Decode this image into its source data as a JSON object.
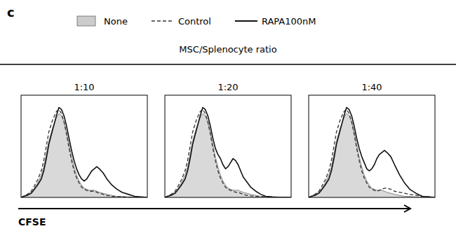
{
  "title": "c",
  "subtitle": "MSC/Splenocyte ratio",
  "xlabel": "CFSE",
  "chart_data": [
    {
      "type": "line",
      "title": "1:10",
      "legend": "top",
      "grid": false,
      "tick_labels": false,
      "xlim": [
        0,
        1.0
      ],
      "ylim": [
        0,
        1.0
      ],
      "xticks": [],
      "yticks": [],
      "x": [
        0,
        0.02,
        0.05,
        0.08,
        0.1,
        0.13,
        0.16,
        0.18,
        0.2,
        0.22,
        0.25,
        0.28,
        0.3,
        0.32,
        0.34,
        0.36,
        0.38,
        0.4,
        0.42,
        0.44,
        0.46,
        0.48,
        0.5,
        0.52,
        0.54,
        0.56,
        0.58,
        0.6,
        0.62,
        0.65,
        0.68,
        0.72,
        0.76,
        0.8,
        0.85,
        0.9,
        0.95,
        1.0
      ],
      "series": [
        {
          "name": "None",
          "type": "area",
          "color": "#cccccc",
          "line_style": "solid",
          "values": [
            0,
            0.01,
            0.03,
            0.05,
            0.08,
            0.14,
            0.22,
            0.3,
            0.42,
            0.55,
            0.68,
            0.78,
            0.82,
            0.8,
            0.74,
            0.64,
            0.52,
            0.4,
            0.3,
            0.22,
            0.16,
            0.12,
            0.09,
            0.08,
            0.07,
            0.07,
            0.07,
            0.06,
            0.05,
            0.04,
            0.03,
            0.02,
            0.01,
            0.01,
            0.005,
            0.002,
            0.001,
            0
          ]
        },
        {
          "name": "Control",
          "type": "line",
          "color": "#333333",
          "line_style": "dashed",
          "values": [
            0,
            0.01,
            0.03,
            0.06,
            0.1,
            0.17,
            0.26,
            0.36,
            0.5,
            0.64,
            0.76,
            0.84,
            0.86,
            0.82,
            0.74,
            0.62,
            0.48,
            0.36,
            0.26,
            0.19,
            0.14,
            0.1,
            0.08,
            0.07,
            0.06,
            0.06,
            0.06,
            0.05,
            0.04,
            0.03,
            0.02,
            0.01,
            0.01,
            0.005,
            0.002,
            0.001,
            0,
            0
          ]
        },
        {
          "name": "RAPA100nM",
          "type": "line",
          "color": "#111111",
          "line_style": "solid",
          "values": [
            0,
            0.01,
            0.02,
            0.04,
            0.07,
            0.12,
            0.18,
            0.26,
            0.38,
            0.52,
            0.66,
            0.8,
            0.88,
            0.86,
            0.8,
            0.7,
            0.58,
            0.46,
            0.36,
            0.28,
            0.22,
            0.18,
            0.16,
            0.18,
            0.22,
            0.26,
            0.28,
            0.3,
            0.28,
            0.24,
            0.18,
            0.12,
            0.08,
            0.05,
            0.03,
            0.01,
            0.005,
            0
          ]
        }
      ]
    },
    {
      "type": "line",
      "title": "1:20",
      "grid": false,
      "tick_labels": false,
      "xlim": [
        0,
        1.0
      ],
      "ylim": [
        0,
        1.0
      ],
      "xticks": [],
      "yticks": [],
      "x": [
        0,
        0.02,
        0.05,
        0.08,
        0.1,
        0.13,
        0.16,
        0.18,
        0.2,
        0.22,
        0.25,
        0.28,
        0.3,
        0.32,
        0.34,
        0.36,
        0.38,
        0.4,
        0.42,
        0.44,
        0.46,
        0.48,
        0.5,
        0.52,
        0.54,
        0.56,
        0.58,
        0.6,
        0.62,
        0.65,
        0.68,
        0.72,
        0.76,
        0.8,
        0.85,
        0.9,
        0.95,
        1.0
      ],
      "series": [
        {
          "name": "None",
          "type": "area",
          "color": "#cccccc",
          "line_style": "solid",
          "values": [
            0,
            0.01,
            0.03,
            0.05,
            0.08,
            0.14,
            0.22,
            0.3,
            0.42,
            0.55,
            0.68,
            0.78,
            0.82,
            0.8,
            0.74,
            0.64,
            0.52,
            0.4,
            0.3,
            0.22,
            0.16,
            0.12,
            0.09,
            0.08,
            0.07,
            0.07,
            0.07,
            0.06,
            0.05,
            0.04,
            0.03,
            0.02,
            0.01,
            0.01,
            0.005,
            0.002,
            0.001,
            0
          ]
        },
        {
          "name": "Control",
          "type": "line",
          "color": "#333333",
          "line_style": "dashed",
          "values": [
            0,
            0.01,
            0.03,
            0.06,
            0.1,
            0.17,
            0.26,
            0.36,
            0.5,
            0.64,
            0.76,
            0.84,
            0.86,
            0.82,
            0.74,
            0.62,
            0.48,
            0.36,
            0.26,
            0.19,
            0.14,
            0.1,
            0.08,
            0.07,
            0.06,
            0.05,
            0.05,
            0.04,
            0.03,
            0.02,
            0.015,
            0.01,
            0.008,
            0.005,
            0.002,
            0.001,
            0,
            0
          ]
        },
        {
          "name": "RAPA100nM",
          "type": "line",
          "color": "#111111",
          "line_style": "solid",
          "values": [
            0,
            0.01,
            0.02,
            0.04,
            0.07,
            0.12,
            0.18,
            0.26,
            0.38,
            0.52,
            0.66,
            0.8,
            0.88,
            0.86,
            0.8,
            0.7,
            0.58,
            0.48,
            0.42,
            0.38,
            0.32,
            0.28,
            0.3,
            0.34,
            0.38,
            0.36,
            0.32,
            0.26,
            0.2,
            0.15,
            0.1,
            0.06,
            0.03,
            0.01,
            0.005,
            0.002,
            0.001,
            0
          ]
        }
      ]
    },
    {
      "type": "line",
      "title": "1:40",
      "grid": false,
      "tick_labels": false,
      "xlim": [
        0,
        1.0
      ],
      "ylim": [
        0,
        1.0
      ],
      "xticks": [],
      "yticks": [],
      "x": [
        0,
        0.02,
        0.05,
        0.08,
        0.1,
        0.13,
        0.16,
        0.18,
        0.2,
        0.22,
        0.25,
        0.28,
        0.3,
        0.32,
        0.34,
        0.36,
        0.38,
        0.4,
        0.42,
        0.44,
        0.46,
        0.48,
        0.5,
        0.52,
        0.54,
        0.56,
        0.58,
        0.6,
        0.62,
        0.65,
        0.68,
        0.72,
        0.76,
        0.8,
        0.85,
        0.9,
        0.95,
        1.0
      ],
      "series": [
        {
          "name": "None",
          "type": "area",
          "color": "#cccccc",
          "line_style": "solid",
          "values": [
            0,
            0.01,
            0.03,
            0.05,
            0.08,
            0.14,
            0.22,
            0.3,
            0.42,
            0.55,
            0.68,
            0.78,
            0.82,
            0.8,
            0.74,
            0.64,
            0.52,
            0.4,
            0.3,
            0.22,
            0.16,
            0.12,
            0.09,
            0.08,
            0.07,
            0.07,
            0.07,
            0.06,
            0.05,
            0.04,
            0.03,
            0.02,
            0.01,
            0.01,
            0.005,
            0.002,
            0.001,
            0
          ]
        },
        {
          "name": "Control",
          "type": "line",
          "color": "#333333",
          "line_style": "dashed",
          "values": [
            0,
            0.01,
            0.03,
            0.06,
            0.1,
            0.17,
            0.26,
            0.36,
            0.5,
            0.64,
            0.76,
            0.84,
            0.86,
            0.82,
            0.74,
            0.62,
            0.48,
            0.36,
            0.26,
            0.19,
            0.14,
            0.1,
            0.08,
            0.07,
            0.06,
            0.07,
            0.08,
            0.09,
            0.09,
            0.08,
            0.06,
            0.05,
            0.04,
            0.03,
            0.02,
            0.01,
            0.005,
            0
          ]
        },
        {
          "name": "RAPA100nM",
          "type": "line",
          "color": "#111111",
          "line_style": "solid",
          "values": [
            0,
            0.01,
            0.02,
            0.04,
            0.07,
            0.12,
            0.18,
            0.26,
            0.38,
            0.52,
            0.66,
            0.8,
            0.88,
            0.86,
            0.8,
            0.7,
            0.58,
            0.48,
            0.4,
            0.34,
            0.28,
            0.26,
            0.28,
            0.32,
            0.38,
            0.42,
            0.44,
            0.46,
            0.44,
            0.4,
            0.32,
            0.22,
            0.14,
            0.08,
            0.04,
            0.01,
            0.005,
            0
          ]
        }
      ]
    }
  ]
}
